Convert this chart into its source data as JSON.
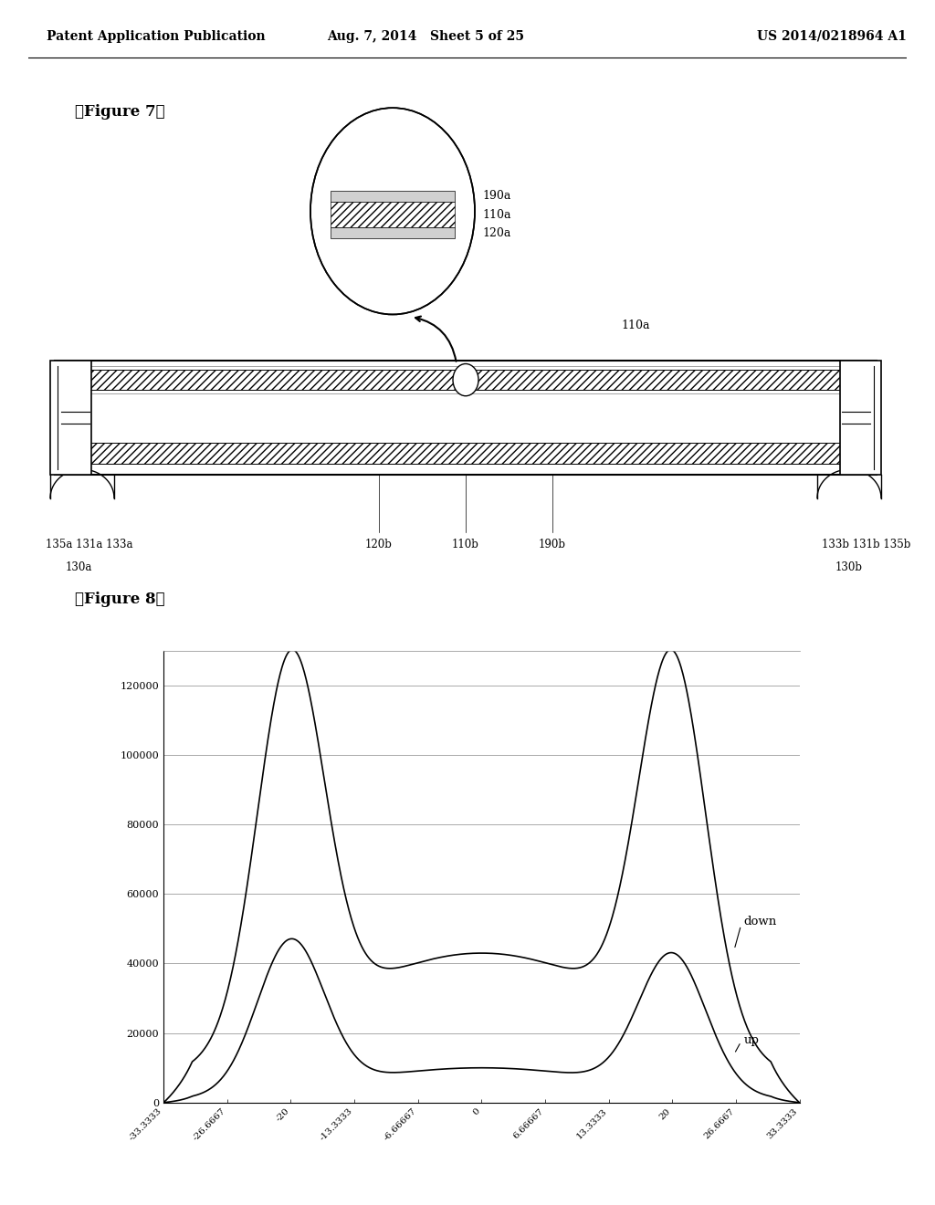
{
  "header_left": "Patent Application Publication",
  "header_mid": "Aug. 7, 2014   Sheet 5 of 25",
  "header_right": "US 2014/0218964 A1",
  "fig7_label": "【Figure 7】",
  "fig8_label": "【Figure 8】",
  "background_color": "#ffffff",
  "line_color": "#000000",
  "graph_xticks": [
    "-33.3333",
    "-26.6667",
    "-20",
    "-13.3333",
    "-6.66667",
    "0",
    "6.66667",
    "13.3333",
    "20",
    "26.6667",
    "33.3333"
  ],
  "graph_xtick_vals": [
    -33.3333,
    -26.6667,
    -20,
    -13.3333,
    -6.66667,
    0,
    6.66667,
    13.3333,
    20,
    26.6667,
    33.3333
  ],
  "graph_yticks": [
    0,
    20000,
    40000,
    60000,
    80000,
    100000,
    120000
  ],
  "graph_ylim": [
    0,
    130000
  ],
  "graph_xlim": [
    -33.3333,
    33.3333
  ],
  "label_down": "down",
  "label_up": "up"
}
